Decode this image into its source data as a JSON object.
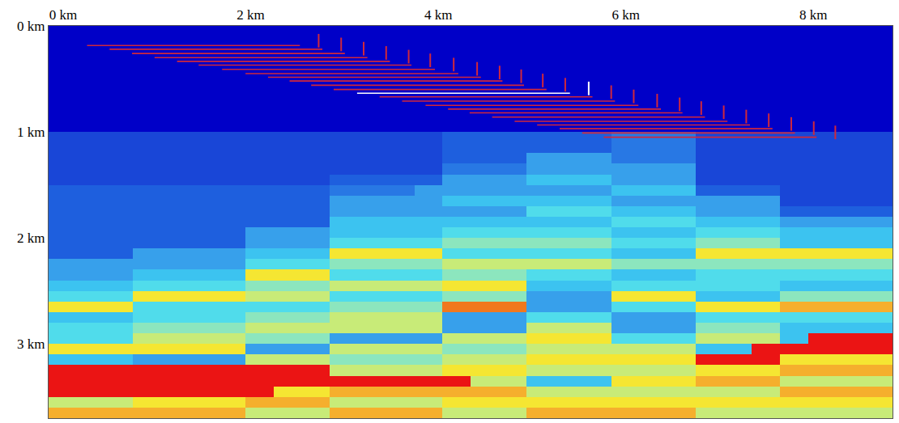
{
  "chart_data": {
    "type": "heatmap",
    "grid": true,
    "xlim": [
      0,
      9
    ],
    "ylim": [
      3.7,
      0
    ],
    "xticks": [
      {
        "value": 0,
        "label": "0 km"
      },
      {
        "value": 2,
        "label": "2 km"
      },
      {
        "value": 4,
        "label": "4 km"
      },
      {
        "value": 6,
        "label": "6 km"
      },
      {
        "value": 8,
        "label": "8 km"
      }
    ],
    "yticks": [
      {
        "value": 0,
        "label": "0 km"
      },
      {
        "value": 1,
        "label": "1 km"
      },
      {
        "value": 2,
        "label": "2 km"
      },
      {
        "value": 3,
        "label": "3 km"
      }
    ],
    "zlim": [
      1.5,
      5.5
    ],
    "x": [
      0.15,
      0.45,
      0.75,
      1.05,
      1.35,
      1.65,
      1.95,
      2.25,
      2.55,
      2.85,
      3.15,
      3.45,
      3.75,
      4.05,
      4.35,
      4.65,
      4.95,
      5.25,
      5.55,
      5.85,
      6.15,
      6.45,
      6.75,
      7.05,
      7.35,
      7.65,
      7.95,
      8.25,
      8.55,
      8.85
    ],
    "y": [
      0.05,
      0.15,
      0.25,
      0.35,
      0.45,
      0.55,
      0.65,
      0.75,
      0.85,
      0.95,
      1.05,
      1.15,
      1.25,
      1.35,
      1.45,
      1.55,
      1.65,
      1.75,
      1.85,
      1.95,
      2.05,
      2.15,
      2.25,
      2.35,
      2.45,
      2.55,
      2.65,
      2.75,
      2.85,
      2.95,
      3.05,
      3.15,
      3.25,
      3.35,
      3.45,
      3.55,
      3.65
    ],
    "cells": [
      [
        1.5,
        1.5,
        1.5,
        1.5,
        1.5,
        1.5,
        1.5,
        1.5,
        1.5,
        1.5,
        1.5,
        1.5,
        1.5,
        1.5,
        1.5,
        1.5,
        1.5,
        1.5,
        1.5,
        1.5,
        1.5,
        1.5,
        1.5,
        1.5,
        1.5,
        1.5,
        1.5,
        1.5,
        1.5,
        1.5
      ],
      [
        1.5,
        1.5,
        1.5,
        1.5,
        1.5,
        1.5,
        1.5,
        1.5,
        1.5,
        1.5,
        1.5,
        1.5,
        1.5,
        1.5,
        1.5,
        1.5,
        1.5,
        1.5,
        1.5,
        1.5,
        1.5,
        1.5,
        1.5,
        1.5,
        1.5,
        1.5,
        1.5,
        1.5,
        1.5,
        1.5
      ],
      [
        1.5,
        1.5,
        1.5,
        1.5,
        1.5,
        1.5,
        1.5,
        1.5,
        1.5,
        1.5,
        1.5,
        1.5,
        1.5,
        1.5,
        1.5,
        1.5,
        1.5,
        1.5,
        1.5,
        1.5,
        1.5,
        1.5,
        1.5,
        1.5,
        1.5,
        1.5,
        1.5,
        1.5,
        1.5,
        1.5
      ],
      [
        1.5,
        1.5,
        1.5,
        1.5,
        1.5,
        1.5,
        1.5,
        1.5,
        1.5,
        1.5,
        1.5,
        1.5,
        1.5,
        1.5,
        1.5,
        1.5,
        1.5,
        1.5,
        1.5,
        1.5,
        1.5,
        1.5,
        1.5,
        1.5,
        1.5,
        1.5,
        1.5,
        1.5,
        1.5,
        1.5
      ],
      [
        1.5,
        1.5,
        1.5,
        1.5,
        1.5,
        1.5,
        1.5,
        1.5,
        1.5,
        1.5,
        1.5,
        1.5,
        1.5,
        1.5,
        1.5,
        1.5,
        1.5,
        1.5,
        1.5,
        1.5,
        1.5,
        1.5,
        1.5,
        1.5,
        1.5,
        1.5,
        1.5,
        1.5,
        1.5,
        1.5
      ],
      [
        1.5,
        1.5,
        1.5,
        1.5,
        1.5,
        1.5,
        1.5,
        1.5,
        1.5,
        1.5,
        1.5,
        1.5,
        1.5,
        1.5,
        1.5,
        1.5,
        1.5,
        1.5,
        1.5,
        1.5,
        1.5,
        1.5,
        1.5,
        1.5,
        1.5,
        1.5,
        1.5,
        1.5,
        1.5,
        1.5
      ],
      [
        1.5,
        1.5,
        1.5,
        1.5,
        1.5,
        1.5,
        1.5,
        1.5,
        1.5,
        1.5,
        1.5,
        1.5,
        1.5,
        1.5,
        1.5,
        1.5,
        1.5,
        1.5,
        1.5,
        1.5,
        1.5,
        1.5,
        1.5,
        1.5,
        1.5,
        1.5,
        1.5,
        1.5,
        1.5,
        1.5
      ],
      [
        1.5,
        1.5,
        1.5,
        1.5,
        1.5,
        1.5,
        1.5,
        1.5,
        1.5,
        1.5,
        1.5,
        1.5,
        1.5,
        1.5,
        1.5,
        1.5,
        1.5,
        1.5,
        1.5,
        1.5,
        1.5,
        1.5,
        1.5,
        1.5,
        1.5,
        1.5,
        1.5,
        1.5,
        1.5,
        1.5
      ],
      [
        1.5,
        1.5,
        1.5,
        1.5,
        1.5,
        1.5,
        1.5,
        1.5,
        1.5,
        1.5,
        1.5,
        1.5,
        1.5,
        1.5,
        1.5,
        1.5,
        1.5,
        1.5,
        1.5,
        1.5,
        1.5,
        1.5,
        1.5,
        1.5,
        1.5,
        1.5,
        1.5,
        1.5,
        1.5,
        1.5
      ],
      [
        1.5,
        1.5,
        1.5,
        1.5,
        1.5,
        1.5,
        1.5,
        1.5,
        1.5,
        1.5,
        1.5,
        1.5,
        1.5,
        1.5,
        1.5,
        1.5,
        1.5,
        1.5,
        1.5,
        1.5,
        1.5,
        1.5,
        1.5,
        1.5,
        1.5,
        1.5,
        1.5,
        1.5,
        1.5,
        1.5
      ],
      [
        1.7,
        1.7,
        1.7,
        1.7,
        1.7,
        1.7,
        1.7,
        1.7,
        1.7,
        1.7,
        1.7,
        1.7,
        1.7,
        1.7,
        1.8,
        1.8,
        1.8,
        1.8,
        1.8,
        1.8,
        1.9,
        1.9,
        1.9,
        1.7,
        1.7,
        1.7,
        1.7,
        1.7,
        1.7,
        1.7
      ],
      [
        1.7,
        1.7,
        1.7,
        1.7,
        1.7,
        1.7,
        1.7,
        1.7,
        1.7,
        1.7,
        1.7,
        1.7,
        1.7,
        1.7,
        1.8,
        1.8,
        1.8,
        1.8,
        1.8,
        1.8,
        1.9,
        1.9,
        1.9,
        1.7,
        1.7,
        1.7,
        1.7,
        1.7,
        1.7,
        1.7
      ],
      [
        1.7,
        1.7,
        1.7,
        1.7,
        1.7,
        1.7,
        1.7,
        1.7,
        1.7,
        1.7,
        1.7,
        1.7,
        1.7,
        1.7,
        1.8,
        1.8,
        1.8,
        2.1,
        2.1,
        2.1,
        1.9,
        1.9,
        1.9,
        1.7,
        1.7,
        1.7,
        1.7,
        1.7,
        1.7,
        1.7
      ],
      [
        1.7,
        1.7,
        1.7,
        1.7,
        1.7,
        1.7,
        1.7,
        1.7,
        1.7,
        1.7,
        1.7,
        1.7,
        1.7,
        1.7,
        1.9,
        1.9,
        1.9,
        2.1,
        2.1,
        2.1,
        2.1,
        2.1,
        2.1,
        1.7,
        1.7,
        1.7,
        1.7,
        1.7,
        1.7,
        1.7
      ],
      [
        1.7,
        1.7,
        1.7,
        1.7,
        1.7,
        1.7,
        1.7,
        1.7,
        1.7,
        1.7,
        1.8,
        1.8,
        1.8,
        1.8,
        2.1,
        2.1,
        2.1,
        2.3,
        2.3,
        2.3,
        2.1,
        2.1,
        2.1,
        1.7,
        1.7,
        1.7,
        1.7,
        1.7,
        1.7,
        1.7
      ],
      [
        1.8,
        1.8,
        1.8,
        1.8,
        1.8,
        1.8,
        1.8,
        1.8,
        1.8,
        1.8,
        1.9,
        1.9,
        1.9,
        2.1,
        2.1,
        2.1,
        2.1,
        2.1,
        2.1,
        2.1,
        2.3,
        2.3,
        2.3,
        1.8,
        1.8,
        1.8,
        1.7,
        1.7,
        1.7,
        1.7
      ],
      [
        1.8,
        1.8,
        1.8,
        1.8,
        1.8,
        1.8,
        1.8,
        1.8,
        1.8,
        1.8,
        2.1,
        2.1,
        2.1,
        2.1,
        2.3,
        2.3,
        2.3,
        2.3,
        2.3,
        2.3,
        2.1,
        2.1,
        2.1,
        2.1,
        2.1,
        2.1,
        1.7,
        1.7,
        1.7,
        1.7
      ],
      [
        1.8,
        1.8,
        1.8,
        1.8,
        1.8,
        1.8,
        1.8,
        1.8,
        1.8,
        1.8,
        2.1,
        2.1,
        2.1,
        2.1,
        2.1,
        2.1,
        2.1,
        2.5,
        2.5,
        2.5,
        2.3,
        2.3,
        2.3,
        2.1,
        2.1,
        2.1,
        1.8,
        1.8,
        1.8,
        1.8
      ],
      [
        1.8,
        1.8,
        1.8,
        1.8,
        1.8,
        1.8,
        1.8,
        1.8,
        1.8,
        1.8,
        2.3,
        2.3,
        2.3,
        2.3,
        2.3,
        2.3,
        2.3,
        2.3,
        2.3,
        2.3,
        2.5,
        2.5,
        2.5,
        2.3,
        2.3,
        2.3,
        2.1,
        2.1,
        2.1,
        2.1
      ],
      [
        1.8,
        1.8,
        1.8,
        1.8,
        1.8,
        1.8,
        1.8,
        2.1,
        2.1,
        2.1,
        2.3,
        2.3,
        2.3,
        2.3,
        2.5,
        2.5,
        2.5,
        2.5,
        2.5,
        2.5,
        2.3,
        2.3,
        2.3,
        2.5,
        2.5,
        2.5,
        2.3,
        2.3,
        2.3,
        2.3
      ],
      [
        1.8,
        1.8,
        1.8,
        1.8,
        1.8,
        1.8,
        1.8,
        2.1,
        2.1,
        2.1,
        2.5,
        2.5,
        2.5,
        2.5,
        2.8,
        2.8,
        2.8,
        2.8,
        2.8,
        2.8,
        2.5,
        2.5,
        2.5,
        2.8,
        2.8,
        2.8,
        2.3,
        2.3,
        2.3,
        2.3
      ],
      [
        1.8,
        1.8,
        1.8,
        2.1,
        2.1,
        2.1,
        2.1,
        2.3,
        2.3,
        2.3,
        3.4,
        3.4,
        3.4,
        3.4,
        2.5,
        2.5,
        2.5,
        2.5,
        2.5,
        2.5,
        2.3,
        2.3,
        2.3,
        3.4,
        3.4,
        3.4,
        3.4,
        3.4,
        3.4,
        3.4
      ],
      [
        2.1,
        2.1,
        2.1,
        2.1,
        2.1,
        2.1,
        2.1,
        2.5,
        2.5,
        2.5,
        2.8,
        2.8,
        2.8,
        2.8,
        3.1,
        3.1,
        3.1,
        3.1,
        3.1,
        3.1,
        2.8,
        2.8,
        2.8,
        2.8,
        2.8,
        2.8,
        2.8,
        2.8,
        2.8,
        2.8
      ],
      [
        2.1,
        2.1,
        2.1,
        2.3,
        2.3,
        2.3,
        2.3,
        3.4,
        3.4,
        3.4,
        2.5,
        2.5,
        2.5,
        2.5,
        2.8,
        2.8,
        2.8,
        2.5,
        2.5,
        2.5,
        2.3,
        2.3,
        2.3,
        2.5,
        2.5,
        2.5,
        2.5,
        2.5,
        2.5,
        2.5
      ],
      [
        2.3,
        2.3,
        2.3,
        2.5,
        2.5,
        2.5,
        2.5,
        2.8,
        2.8,
        2.8,
        3.1,
        3.1,
        3.1,
        3.1,
        3.4,
        3.4,
        3.4,
        2.3,
        2.3,
        2.3,
        2.5,
        2.5,
        2.5,
        2.5,
        2.5,
        2.5,
        2.3,
        2.3,
        2.3,
        2.3
      ],
      [
        2.5,
        2.5,
        2.5,
        3.4,
        3.4,
        3.4,
        3.4,
        3.1,
        3.1,
        3.1,
        2.5,
        2.5,
        2.5,
        2.5,
        2.8,
        2.8,
        2.8,
        2.1,
        2.1,
        2.1,
        3.4,
        3.4,
        3.4,
        2.3,
        2.3,
        2.3,
        2.8,
        2.8,
        2.8,
        2.8
      ],
      [
        3.4,
        3.4,
        3.4,
        2.5,
        2.5,
        2.5,
        2.5,
        2.5,
        2.5,
        2.5,
        2.8,
        2.8,
        2.8,
        2.8,
        4.2,
        4.2,
        4.2,
        2.1,
        2.1,
        2.1,
        2.5,
        2.5,
        2.5,
        3.4,
        3.4,
        3.4,
        3.8,
        3.8,
        3.8,
        3.8
      ],
      [
        2.3,
        2.3,
        2.3,
        2.5,
        2.5,
        2.5,
        2.5,
        2.8,
        2.8,
        2.8,
        3.1,
        3.1,
        3.1,
        3.1,
        2.1,
        2.1,
        2.1,
        2.5,
        2.5,
        2.5,
        2.1,
        2.1,
        2.1,
        2.5,
        2.5,
        2.5,
        2.5,
        2.5,
        2.5,
        2.5
      ],
      [
        2.5,
        2.5,
        2.5,
        2.8,
        2.8,
        2.8,
        2.8,
        3.1,
        3.1,
        3.1,
        3.1,
        3.1,
        3.1,
        3.1,
        2.1,
        2.1,
        2.1,
        3.1,
        3.1,
        3.1,
        2.1,
        2.1,
        2.1,
        2.8,
        2.8,
        2.8,
        2.3,
        2.3,
        2.3,
        2.3
      ],
      [
        2.5,
        2.5,
        2.5,
        3.1,
        3.1,
        3.1,
        3.1,
        2.8,
        2.8,
        2.8,
        2.1,
        2.1,
        2.1,
        2.1,
        3.1,
        3.1,
        3.1,
        3.4,
        3.4,
        3.4,
        2.5,
        2.5,
        2.5,
        3.1,
        3.1,
        3.1,
        2.3,
        5.5,
        5.5,
        5.5
      ],
      [
        3.4,
        3.4,
        3.4,
        3.4,
        3.4,
        3.4,
        3.4,
        2.1,
        2.1,
        2.1,
        3.1,
        3.1,
        3.1,
        3.1,
        2.8,
        2.8,
        2.8,
        3.1,
        3.1,
        3.1,
        3.1,
        3.1,
        3.1,
        2.3,
        2.3,
        5.5,
        5.5,
        5.5,
        5.5,
        5.5
      ],
      [
        2.3,
        2.3,
        2.3,
        2.1,
        2.1,
        2.1,
        2.1,
        3.1,
        3.1,
        3.1,
        2.8,
        2.8,
        2.8,
        2.8,
        3.1,
        3.1,
        3.1,
        3.4,
        3.4,
        3.4,
        3.4,
        3.4,
        3.4,
        5.5,
        5.5,
        5.5,
        3.4,
        3.4,
        3.4,
        3.4
      ],
      [
        5.5,
        5.5,
        5.5,
        5.5,
        5.5,
        5.5,
        5.5,
        5.5,
        5.5,
        5.5,
        3.1,
        3.1,
        3.1,
        3.1,
        3.4,
        3.4,
        3.4,
        3.1,
        3.1,
        3.1,
        3.1,
        3.1,
        3.1,
        3.4,
        3.4,
        3.4,
        3.8,
        3.8,
        3.8,
        3.8
      ],
      [
        5.5,
        5.5,
        5.5,
        5.5,
        5.5,
        5.5,
        5.5,
        5.5,
        5.5,
        5.5,
        5.5,
        5.5,
        5.5,
        5.5,
        5.5,
        3.1,
        3.1,
        2.3,
        2.3,
        2.3,
        3.4,
        3.4,
        3.4,
        3.8,
        3.8,
        3.8,
        3.1,
        3.1,
        3.1,
        3.1
      ],
      [
        5.5,
        5.5,
        5.5,
        5.5,
        5.5,
        5.5,
        5.5,
        5.5,
        3.4,
        3.4,
        3.8,
        3.8,
        3.8,
        3.8,
        3.8,
        3.8,
        3.8,
        3.1,
        3.1,
        3.1,
        3.1,
        3.1,
        3.1,
        3.1,
        3.1,
        3.1,
        3.8,
        3.8,
        3.8,
        3.8
      ],
      [
        3.1,
        3.1,
        3.1,
        3.4,
        3.4,
        3.4,
        3.4,
        3.8,
        3.8,
        3.8,
        3.1,
        3.1,
        3.1,
        3.1,
        3.4,
        3.4,
        3.4,
        3.4,
        3.4,
        3.4,
        3.4,
        3.4,
        3.4,
        3.4,
        3.4,
        3.4,
        3.4,
        3.4,
        3.4,
        3.4
      ],
      [
        3.8,
        3.8,
        3.8,
        3.8,
        3.8,
        3.8,
        3.8,
        3.1,
        3.1,
        3.1,
        3.8,
        3.8,
        3.8,
        3.8,
        3.1,
        3.1,
        3.1,
        3.8,
        3.8,
        3.8,
        3.8,
        3.8,
        3.8,
        3.1,
        3.1,
        3.1,
        3.1,
        3.1,
        3.1,
        3.1
      ]
    ],
    "streamers": {
      "x0": [
        0.41,
        0.65,
        0.89,
        1.13,
        1.37,
        1.6,
        1.85,
        2.1,
        2.34,
        2.57,
        2.8,
        3.04,
        3.29,
        3.53,
        3.77,
        4.02,
        4.26,
        4.49,
        4.73,
        4.97,
        5.21,
        5.45,
        5.69,
        5.92
      ],
      "x1": [
        2.68,
        2.92,
        3.16,
        3.4,
        3.64,
        3.87,
        4.12,
        4.37,
        4.61,
        4.84,
        5.07,
        5.31,
        5.56,
        5.8,
        6.04,
        6.29,
        6.53,
        6.76,
        7.0,
        7.24,
        7.48,
        7.72,
        7.96,
        8.19
      ],
      "z": [
        0.185,
        0.22,
        0.26,
        0.3,
        0.335,
        0.37,
        0.41,
        0.45,
        0.485,
        0.52,
        0.56,
        0.6,
        0.635,
        0.67,
        0.71,
        0.75,
        0.785,
        0.82,
        0.86,
        0.9,
        0.935,
        0.97,
        1.01,
        1.05
      ],
      "colors": [
        "#d0283c",
        "#d0283c",
        "#d0283c",
        "#d0283c",
        "#d0283c",
        "#d0283c",
        "#d0283c",
        "#d0283c",
        "#d0283c",
        "#d0283c",
        "#d0283c",
        "#d0283c",
        "#ffffff",
        "#d0283c",
        "#d0283c",
        "#d0283c",
        "#d0283c",
        "#d0283c",
        "#d0283c",
        "#d0283c",
        "#d0283c",
        "#d0283c",
        "#d0283c",
        "#d0283c"
      ]
    },
    "sources": {
      "x": [
        2.88,
        3.12,
        3.36,
        3.6,
        3.84,
        4.07,
        4.32,
        4.57,
        4.81,
        5.04,
        5.27,
        5.51,
        5.76,
        6.0,
        6.24,
        6.49,
        6.73,
        6.96,
        7.2,
        7.44,
        7.68,
        7.92,
        8.16,
        8.39
      ],
      "z": [
        0.14,
        0.175,
        0.215,
        0.255,
        0.29,
        0.325,
        0.365,
        0.405,
        0.44,
        0.475,
        0.515,
        0.555,
        0.59,
        0.625,
        0.665,
        0.705,
        0.74,
        0.775,
        0.815,
        0.855,
        0.89,
        0.925,
        0.965,
        1.005
      ],
      "colors": [
        "#d0283c",
        "#d0283c",
        "#d0283c",
        "#d0283c",
        "#d0283c",
        "#d0283c",
        "#d0283c",
        "#d0283c",
        "#d0283c",
        "#d0283c",
        "#d0283c",
        "#d0283c",
        "#ffffff",
        "#d0283c",
        "#d0283c",
        "#d0283c",
        "#d0283c",
        "#d0283c",
        "#d0283c",
        "#d0283c",
        "#d0283c",
        "#d0283c",
        "#d0283c",
        "#d0283c"
      ]
    }
  }
}
